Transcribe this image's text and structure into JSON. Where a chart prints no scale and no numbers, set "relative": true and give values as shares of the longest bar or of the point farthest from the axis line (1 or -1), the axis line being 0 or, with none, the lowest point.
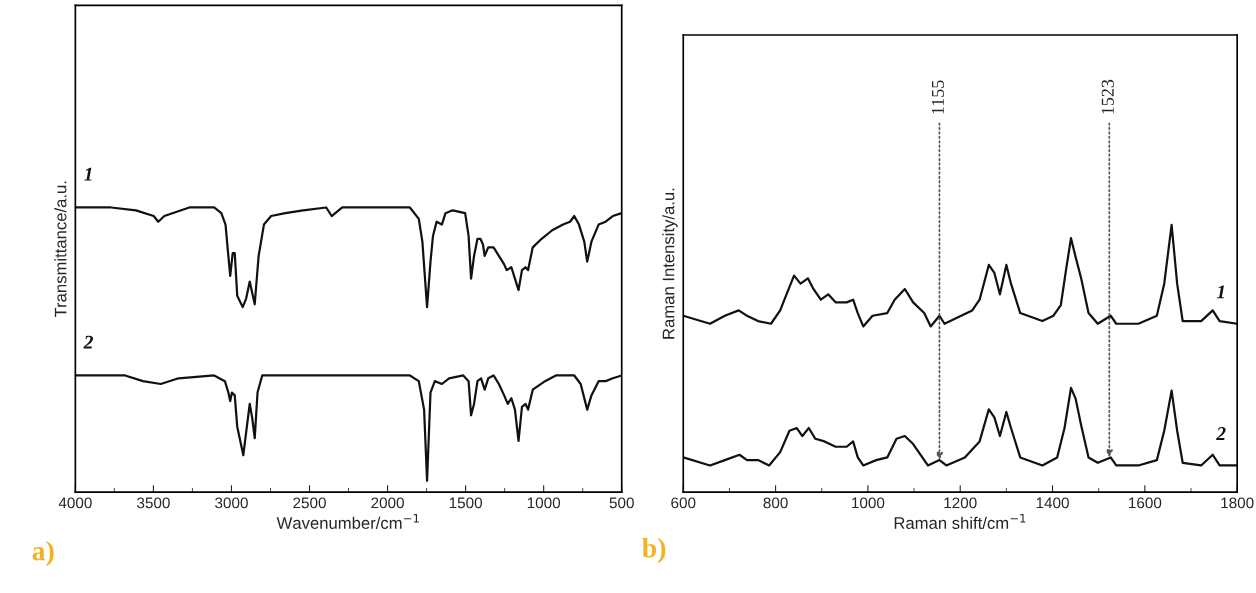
{
  "chart_data": [
    {
      "type": "line",
      "xlabel": "Wavenumber/cm$^{−1}$",
      "ylabel": "Transmittance/a.u.",
      "relative": true,
      "tick_labels": "x",
      "grid": false,
      "legend": false,
      "marker": "none",
      "line_style": "solid",
      "xlim": [
        4000,
        500
      ],
      "xticks": [
        4000,
        3500,
        3000,
        2500,
        2000,
        1500,
        1000,
        500
      ],
      "annotations": [
        "a)"
      ],
      "series": [
        {
          "name": "1",
          "color": "#111111",
          "x": [
            4000,
            3772,
            3612,
            3498,
            3469,
            3430,
            3270,
            3111,
            3065,
            3038,
            3020,
            3008,
            2992,
            2979,
            2963,
            2928,
            2906,
            2883,
            2867,
            2851,
            2826,
            2792,
            2746,
            2655,
            2541,
            2393,
            2358,
            2290,
            2085,
            1857,
            1800,
            1777,
            1747,
            1725,
            1709,
            1686,
            1652,
            1629,
            1583,
            1503,
            1481,
            1465,
            1446,
            1424,
            1405,
            1389,
            1378,
            1355,
            1321,
            1287,
            1253,
            1237,
            1207,
            1184,
            1161,
            1139,
            1116,
            1100,
            1070,
            1013,
            945,
            876,
            831,
            804,
            774,
            740,
            721,
            694,
            648,
            603,
            557,
            500
          ],
          "values": [
            1.0,
            1.0,
            0.99,
            0.97,
            0.95,
            0.97,
            1.0,
            1.0,
            0.98,
            0.94,
            0.83,
            0.76,
            0.84,
            0.84,
            0.69,
            0.65,
            0.68,
            0.74,
            0.7,
            0.66,
            0.83,
            0.94,
            0.97,
            0.98,
            0.99,
            1.0,
            0.97,
            1.0,
            1.0,
            1.0,
            0.96,
            0.88,
            0.65,
            0.81,
            0.9,
            0.95,
            0.94,
            0.98,
            0.99,
            0.98,
            0.9,
            0.75,
            0.83,
            0.89,
            0.89,
            0.87,
            0.83,
            0.86,
            0.86,
            0.83,
            0.8,
            0.78,
            0.79,
            0.75,
            0.71,
            0.78,
            0.79,
            0.78,
            0.86,
            0.89,
            0.92,
            0.94,
            0.95,
            0.97,
            0.94,
            0.88,
            0.81,
            0.88,
            0.94,
            0.95,
            0.97,
            0.98
          ]
        },
        {
          "name": "2",
          "color": "#111111",
          "x": [
            4000,
            3681,
            3567,
            3453,
            3339,
            3111,
            3042,
            3020,
            3008,
            2997,
            2979,
            2963,
            2924,
            2906,
            2883,
            2867,
            2851,
            2833,
            2803,
            2655,
            2199,
            1857,
            1800,
            1766,
            1747,
            1725,
            1697,
            1652,
            1606,
            1515,
            1481,
            1465,
            1446,
            1424,
            1401,
            1378,
            1355,
            1321,
            1287,
            1253,
            1230,
            1207,
            1184,
            1161,
            1139,
            1116,
            1100,
            1070,
            991,
            922,
            876,
            804,
            763,
            721,
            694,
            648,
            603,
            557,
            500
          ],
          "values": [
            0.41,
            0.41,
            0.39,
            0.38,
            0.4,
            0.41,
            0.39,
            0.35,
            0.32,
            0.35,
            0.34,
            0.23,
            0.13,
            0.21,
            0.31,
            0.26,
            0.19,
            0.35,
            0.41,
            0.41,
            0.41,
            0.41,
            0.39,
            0.29,
            0.04,
            0.35,
            0.39,
            0.38,
            0.4,
            0.41,
            0.39,
            0.27,
            0.31,
            0.39,
            0.4,
            0.36,
            0.4,
            0.41,
            0.38,
            0.34,
            0.31,
            0.33,
            0.29,
            0.18,
            0.3,
            0.31,
            0.29,
            0.36,
            0.39,
            0.41,
            0.41,
            0.41,
            0.38,
            0.29,
            0.34,
            0.39,
            0.39,
            0.4,
            0.41
          ]
        }
      ]
    },
    {
      "type": "line",
      "xlabel": "Raman shift/cm$^{−1}$",
      "ylabel": "Raman Intensity/a.u.",
      "relative": true,
      "tick_labels": "x",
      "grid": false,
      "legend": false,
      "marker": "none",
      "line_style": "solid",
      "xlim": [
        600,
        1800
      ],
      "xticks": [
        600,
        800,
        1000,
        1200,
        1400,
        1600,
        1800
      ],
      "annotations": [
        "b)",
        {
          "text": "1155",
          "x": 1155,
          "y": 0.12
        },
        {
          "text": "1523",
          "x": 1523,
          "y": 0.13
        }
      ],
      "series": [
        {
          "name": "1",
          "color": "#111111",
          "x": [
            600,
            658,
            690,
            720,
            738,
            762,
            790,
            810,
            826,
            840,
            854,
            870,
            882,
            898,
            914,
            930,
            954,
            968,
            978,
            990,
            1010,
            1042,
            1058,
            1080,
            1098,
            1122,
            1136,
            1155,
            1166,
            1202,
            1226,
            1242,
            1262,
            1274,
            1286,
            1300,
            1310,
            1330,
            1378,
            1402,
            1418,
            1430,
            1440,
            1450,
            1462,
            1478,
            1498,
            1526,
            1538,
            1586,
            1626,
            1642,
            1658,
            1670,
            1682,
            1722,
            1747,
            1762,
            1800
          ],
          "values": [
            0.66,
            0.63,
            0.66,
            0.68,
            0.66,
            0.64,
            0.63,
            0.68,
            0.75,
            0.81,
            0.78,
            0.8,
            0.76,
            0.72,
            0.74,
            0.71,
            0.71,
            0.72,
            0.67,
            0.62,
            0.66,
            0.67,
            0.72,
            0.76,
            0.71,
            0.67,
            0.62,
            0.66,
            0.63,
            0.66,
            0.68,
            0.72,
            0.85,
            0.82,
            0.74,
            0.85,
            0.78,
            0.67,
            0.64,
            0.66,
            0.7,
            0.84,
            0.95,
            0.88,
            0.8,
            0.67,
            0.63,
            0.66,
            0.63,
            0.63,
            0.66,
            0.78,
            1.0,
            0.78,
            0.64,
            0.64,
            0.68,
            0.64,
            0.63
          ]
        },
        {
          "name": "2",
          "color": "#111111",
          "x": [
            600,
            658,
            690,
            722,
            738,
            762,
            786,
            810,
            830,
            846,
            858,
            872,
            886,
            906,
            930,
            954,
            968,
            978,
            990,
            1018,
            1042,
            1062,
            1080,
            1098,
            1130,
            1155,
            1170,
            1210,
            1242,
            1262,
            1274,
            1286,
            1300,
            1310,
            1330,
            1378,
            1410,
            1426,
            1440,
            1450,
            1462,
            1478,
            1498,
            1526,
            1538,
            1586,
            1626,
            1642,
            1658,
            1670,
            1682,
            1722,
            1747,
            1762,
            1800
          ],
          "values": [
            0.13,
            0.1,
            0.12,
            0.14,
            0.12,
            0.12,
            0.1,
            0.15,
            0.23,
            0.24,
            0.21,
            0.24,
            0.2,
            0.19,
            0.17,
            0.17,
            0.19,
            0.13,
            0.1,
            0.12,
            0.13,
            0.2,
            0.21,
            0.18,
            0.1,
            0.12,
            0.1,
            0.13,
            0.19,
            0.31,
            0.28,
            0.21,
            0.3,
            0.24,
            0.13,
            0.1,
            0.13,
            0.24,
            0.39,
            0.35,
            0.25,
            0.13,
            0.11,
            0.13,
            0.1,
            0.1,
            0.12,
            0.23,
            0.38,
            0.23,
            0.11,
            0.1,
            0.14,
            0.1,
            0.1
          ]
        }
      ]
    }
  ]
}
